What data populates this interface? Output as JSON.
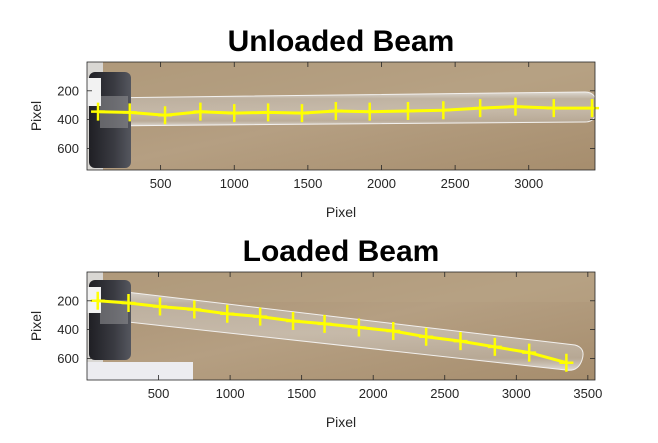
{
  "chart_data": [
    {
      "type": "line",
      "title": "Unloaded Beam",
      "xlabel": "Pixel",
      "ylabel": "Pixel",
      "xlim": [
        0,
        3450
      ],
      "ylim": [
        0,
        750
      ],
      "y_reversed": true,
      "xticks": [
        500,
        1000,
        1500,
        2000,
        2500,
        3000
      ],
      "yticks": [
        200,
        400,
        600
      ],
      "series_color": "#ffff00",
      "background": "photo of a clear plastic tube (beam) clamped at the left on a brown board",
      "x": [
        75,
        290,
        530,
        770,
        1000,
        1230,
        1460,
        1690,
        1920,
        2180,
        2420,
        2670,
        2910,
        3170,
        3430
      ],
      "y": [
        345,
        350,
        370,
        345,
        355,
        350,
        355,
        340,
        345,
        340,
        335,
        320,
        310,
        320,
        320
      ]
    },
    {
      "type": "line",
      "title": "Loaded Beam",
      "xlabel": "Pixel",
      "ylabel": "Pixel",
      "xlim": [
        0,
        3550
      ],
      "ylim": [
        0,
        750
      ],
      "y_reversed": true,
      "xticks": [
        500,
        1000,
        1500,
        2000,
        2500,
        3000,
        3500
      ],
      "yticks": [
        200,
        400,
        600
      ],
      "series_color": "#ffff00",
      "background": "photo of the same plastic tube bending downward under load",
      "x": [
        75,
        290,
        510,
        750,
        980,
        1210,
        1440,
        1660,
        1900,
        2140,
        2370,
        2610,
        2850,
        3090,
        3350
      ],
      "y": [
        200,
        215,
        240,
        260,
        290,
        310,
        340,
        360,
        385,
        410,
        450,
        480,
        520,
        560,
        630
      ]
    }
  ]
}
